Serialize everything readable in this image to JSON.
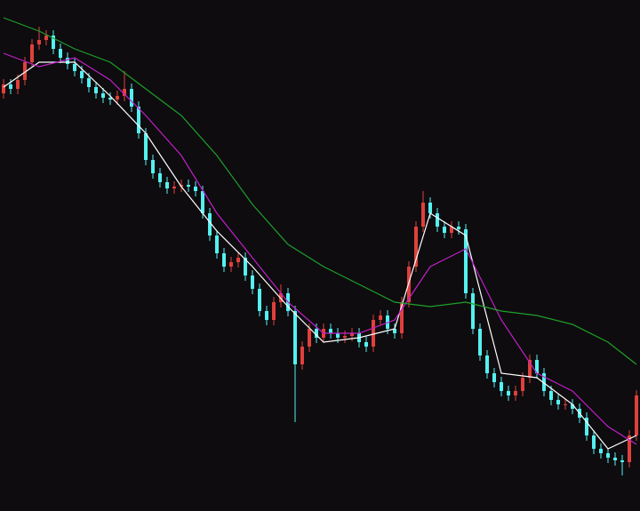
{
  "chart_data": {
    "type": "candlestick",
    "ylim": [
      0,
      575
    ],
    "up_color": "#e0403c",
    "down_color": "#54f0f0",
    "background": "#0e0c0f",
    "open": [
      470,
      480,
      475,
      485,
      505,
      525,
      530,
      535,
      520,
      510,
      503,
      495,
      487,
      477,
      470,
      465,
      463,
      467,
      475,
      455,
      425,
      395,
      380,
      370,
      363,
      365,
      367,
      365,
      360,
      335,
      310,
      290,
      275,
      280,
      285,
      265,
      250,
      225,
      215,
      235,
      245,
      225,
      165,
      185,
      205,
      195,
      205,
      200,
      195,
      197,
      200,
      190,
      185,
      215,
      220,
      205,
      200,
      235,
      275,
      320,
      347,
      335,
      320,
      313,
      320,
      317,
      245,
      205,
      175,
      155,
      145,
      135,
      130,
      135,
      150,
      170,
      155,
      135,
      125,
      120,
      120,
      115,
      105,
      85,
      70,
      65,
      60,
      57,
      55,
      85
    ],
    "high": [
      486,
      486,
      491,
      511,
      531,
      545,
      541,
      541,
      526,
      516,
      509,
      501,
      493,
      483,
      476,
      471,
      473,
      495,
      481,
      461,
      431,
      401,
      386,
      376,
      371,
      373,
      373,
      371,
      366,
      341,
      316,
      296,
      286,
      291,
      291,
      271,
      256,
      231,
      241,
      255,
      251,
      231,
      191,
      211,
      211,
      211,
      211,
      206,
      203,
      206,
      206,
      196,
      221,
      226,
      226,
      211,
      241,
      281,
      326,
      360,
      353,
      341,
      326,
      326,
      326,
      323,
      251,
      211,
      181,
      161,
      151,
      141,
      141,
      156,
      176,
      176,
      161,
      141,
      131,
      126,
      126,
      121,
      111,
      91,
      76,
      71,
      66,
      63,
      91,
      136
    ],
    "low": [
      464,
      469,
      469,
      479,
      499,
      519,
      524,
      514,
      504,
      497,
      489,
      481,
      471,
      464,
      459,
      457,
      457,
      461,
      449,
      419,
      389,
      374,
      364,
      357,
      357,
      359,
      359,
      354,
      329,
      304,
      284,
      269,
      269,
      274,
      259,
      244,
      219,
      209,
      209,
      229,
      219,
      100,
      159,
      179,
      189,
      189,
      194,
      189,
      189,
      191,
      184,
      179,
      179,
      209,
      199,
      194,
      194,
      229,
      269,
      314,
      329,
      314,
      307,
      307,
      311,
      239,
      199,
      169,
      149,
      139,
      129,
      124,
      124,
      129,
      144,
      149,
      129,
      119,
      114,
      114,
      109,
      99,
      79,
      64,
      59,
      54,
      51,
      40,
      49,
      79
    ],
    "close": [
      480,
      475,
      485,
      505,
      525,
      530,
      535,
      520,
      510,
      503,
      495,
      487,
      477,
      470,
      465,
      463,
      467,
      475,
      455,
      425,
      395,
      380,
      370,
      363,
      365,
      367,
      365,
      360,
      335,
      310,
      290,
      275,
      280,
      285,
      265,
      250,
      225,
      215,
      235,
      245,
      225,
      165,
      185,
      205,
      195,
      205,
      200,
      195,
      197,
      200,
      190,
      185,
      215,
      220,
      205,
      200,
      235,
      275,
      320,
      347,
      335,
      320,
      313,
      320,
      317,
      245,
      205,
      175,
      155,
      145,
      135,
      130,
      135,
      150,
      170,
      155,
      135,
      125,
      120,
      120,
      115,
      105,
      85,
      70,
      65,
      60,
      57,
      55,
      85,
      130
    ],
    "lines": [
      {
        "color": "#ffffff",
        "x": [
          0,
          5,
          10,
          15,
          20,
          25,
          30,
          35,
          40,
          45,
          50,
          55,
          60,
          65,
          70,
          75,
          80,
          85,
          89
        ],
        "values": [
          477,
          505,
          505,
          467,
          425,
          365,
          315,
          275,
          230,
          190,
          195,
          205,
          335,
          310,
          155,
          150,
          120,
          70,
          85
        ]
      },
      {
        "color": "#c020c8",
        "x": [
          0,
          5,
          10,
          15,
          20,
          25,
          30,
          35,
          40,
          45,
          50,
          55,
          60,
          65,
          70,
          75,
          80,
          85,
          89
        ],
        "values": [
          515,
          500,
          510,
          485,
          445,
          400,
          335,
          285,
          235,
          200,
          200,
          215,
          275,
          295,
          215,
          155,
          135,
          95,
          75
        ]
      },
      {
        "color": "#1fa02a",
        "x": [
          0,
          5,
          10,
          15,
          20,
          25,
          30,
          35,
          40,
          45,
          50,
          55,
          60,
          65,
          70,
          75,
          80,
          85,
          89
        ],
        "values": [
          555,
          540,
          520,
          505,
          475,
          445,
          400,
          345,
          300,
          275,
          255,
          235,
          230,
          235,
          225,
          220,
          210,
          190,
          165
        ]
      }
    ]
  }
}
